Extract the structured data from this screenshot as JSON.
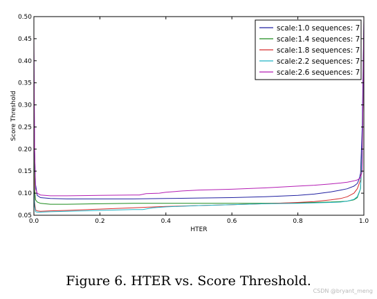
{
  "caption": "Figure 6. HTER vs. Score Threshold.",
  "watermark": "CSDN @bryant_meng",
  "chart_data": {
    "type": "line",
    "title": "",
    "xlabel": "HTER",
    "ylabel": "Score Threshold",
    "xlim": [
      0.0,
      1.0
    ],
    "ylim": [
      0.05,
      0.5
    ],
    "xticks": [
      "0.0",
      "0.2",
      "0.4",
      "0.6",
      "0.8",
      "1.0"
    ],
    "yticks": [
      "0.05",
      "0.10",
      "0.15",
      "0.20",
      "0.25",
      "0.30",
      "0.35",
      "0.40",
      "0.45",
      "0.50"
    ],
    "grid": false,
    "legend_position": "top-right",
    "series": [
      {
        "name": "scale:1.0 sequences: 7",
        "color": "#1f1fa0",
        "x": [
          0.0,
          0.002,
          0.005,
          0.01,
          0.02,
          0.05,
          0.1,
          0.2,
          0.3,
          0.4,
          0.5,
          0.6,
          0.7,
          0.8,
          0.85,
          0.9,
          0.93,
          0.95,
          0.97,
          0.98,
          0.985,
          0.99,
          0.995,
          1.0
        ],
        "y": [
          0.42,
          0.2,
          0.12,
          0.095,
          0.09,
          0.088,
          0.087,
          0.087,
          0.087,
          0.088,
          0.089,
          0.09,
          0.092,
          0.095,
          0.098,
          0.103,
          0.107,
          0.11,
          0.116,
          0.122,
          0.13,
          0.145,
          0.25,
          0.49
        ]
      },
      {
        "name": "scale:1.4 sequences: 7",
        "color": "#1a8a1a",
        "x": [
          0.0,
          0.002,
          0.005,
          0.01,
          0.02,
          0.05,
          0.1,
          0.2,
          0.3,
          0.4,
          0.5,
          0.6,
          0.7,
          0.8,
          0.85,
          0.9,
          0.93,
          0.95,
          0.97,
          0.98,
          0.99,
          0.995,
          1.0
        ],
        "y": [
          0.2,
          0.11,
          0.085,
          0.08,
          0.077,
          0.075,
          0.075,
          0.076,
          0.077,
          0.077,
          0.077,
          0.077,
          0.077,
          0.078,
          0.079,
          0.08,
          0.081,
          0.082,
          0.085,
          0.09,
          0.11,
          0.2,
          0.45
        ]
      },
      {
        "name": "scale:1.8 sequences: 7",
        "color": "#d62b2b",
        "x": [
          0.0,
          0.002,
          0.005,
          0.01,
          0.02,
          0.05,
          0.1,
          0.2,
          0.3,
          0.4,
          0.5,
          0.6,
          0.7,
          0.8,
          0.85,
          0.9,
          0.93,
          0.95,
          0.97,
          0.98,
          0.99,
          0.995,
          1.0
        ],
        "y": [
          0.15,
          0.08,
          0.062,
          0.06,
          0.059,
          0.06,
          0.061,
          0.064,
          0.067,
          0.07,
          0.072,
          0.074,
          0.076,
          0.079,
          0.081,
          0.085,
          0.088,
          0.092,
          0.1,
          0.11,
          0.13,
          0.2,
          0.42
        ]
      },
      {
        "name": "scale:2.2 sequences: 7",
        "color": "#1fb2c4",
        "x": [
          0.0,
          0.002,
          0.005,
          0.01,
          0.02,
          0.05,
          0.1,
          0.2,
          0.3,
          0.33,
          0.36,
          0.4,
          0.5,
          0.6,
          0.7,
          0.8,
          0.85,
          0.9,
          0.93,
          0.95,
          0.97,
          0.98,
          0.99,
          0.995,
          1.0
        ],
        "y": [
          0.12,
          0.07,
          0.058,
          0.057,
          0.057,
          0.058,
          0.059,
          0.061,
          0.063,
          0.063,
          0.067,
          0.069,
          0.072,
          0.074,
          0.076,
          0.077,
          0.078,
          0.079,
          0.08,
          0.082,
          0.086,
          0.092,
          0.11,
          0.2,
          0.44
        ]
      },
      {
        "name": "scale:2.6 sequences: 7",
        "color": "#b31bb3",
        "x": [
          0.0,
          0.002,
          0.005,
          0.01,
          0.02,
          0.05,
          0.1,
          0.2,
          0.3,
          0.32,
          0.34,
          0.38,
          0.4,
          0.45,
          0.5,
          0.6,
          0.7,
          0.8,
          0.85,
          0.9,
          0.93,
          0.95,
          0.97,
          0.98,
          0.99,
          0.995,
          1.0
        ],
        "y": [
          0.46,
          0.2,
          0.11,
          0.1,
          0.096,
          0.094,
          0.094,
          0.095,
          0.096,
          0.096,
          0.099,
          0.1,
          0.102,
          0.105,
          0.107,
          0.109,
          0.112,
          0.116,
          0.118,
          0.121,
          0.123,
          0.125,
          0.128,
          0.13,
          0.135,
          0.15,
          0.5
        ]
      }
    ]
  }
}
